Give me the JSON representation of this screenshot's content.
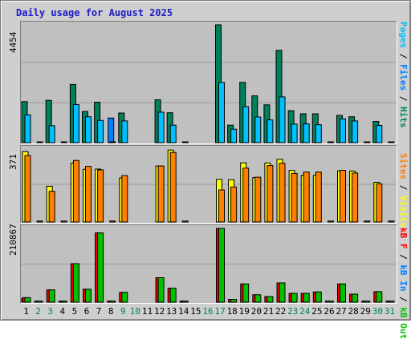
{
  "title": "Daily usage for August 2025",
  "colors": {
    "hits": "#00805c",
    "files": "#0080ff",
    "pages": "#00c0ff",
    "visits": "#ffff00",
    "sites": "#ff8000",
    "kb_f": "#ff0000",
    "kb_in": "#0080ff",
    "kb_out": "#00c000",
    "weekend_day": "#00805c",
    "weekday_day": "#000000"
  },
  "legend_top": [
    {
      "text": "Pages",
      "color": "#00c0ff"
    },
    {
      "text": " / ",
      "color": "#000000"
    },
    {
      "text": "Files",
      "color": "#0080ff"
    },
    {
      "text": " / ",
      "color": "#000000"
    },
    {
      "text": "Hits",
      "color": "#00805c"
    }
  ],
  "legend_mid": [
    {
      "text": "Sites",
      "color": "#ff8000"
    },
    {
      "text": " / ",
      "color": "#000000"
    },
    {
      "text": "Visits",
      "color": "#ffff00"
    }
  ],
  "legend_bot": [
    {
      "text": "kB F",
      "color": "#ff0000"
    },
    {
      "text": " / ",
      "color": "#000000"
    },
    {
      "text": "kB In",
      "color": "#0080ff"
    },
    {
      "text": " / ",
      "color": "#000000"
    },
    {
      "text": "kB Out",
      "color": "#00c000"
    }
  ],
  "chart_data": [
    {
      "type": "bar",
      "name": "hits-files-pages",
      "max_label": "4454",
      "ylim": [
        0,
        4454
      ],
      "categories": [
        "1",
        "2",
        "3",
        "4",
        "5",
        "6",
        "7",
        "8",
        "9",
        "10",
        "11",
        "12",
        "13",
        "14",
        "15",
        "16",
        "17",
        "18",
        "19",
        "20",
        "21",
        "22",
        "23",
        "24",
        "25",
        "26",
        "27",
        "28",
        "29",
        "30",
        "31"
      ],
      "series": [
        {
          "name": "Hits",
          "values": [
            1550,
            0,
            1600,
            0,
            2200,
            1180,
            1530,
            0,
            1120,
            0,
            0,
            1620,
            1130,
            0,
            0,
            0,
            4454,
            660,
            2280,
            1770,
            1430,
            3490,
            1210,
            1090,
            1090,
            0,
            1030,
            980,
            0,
            800,
            0
          ]
        },
        {
          "name": "Files",
          "values": [
            0,
            0,
            0,
            0,
            0,
            0,
            0,
            930,
            0,
            0,
            0,
            0,
            0,
            0,
            0,
            0,
            0,
            0,
            0,
            0,
            0,
            0,
            0,
            0,
            0,
            0,
            0,
            0,
            0,
            0,
            0
          ]
        },
        {
          "name": "Pages",
          "values": [
            1050,
            30,
            640,
            30,
            1440,
            980,
            840,
            30,
            820,
            0,
            0,
            1150,
            660,
            30,
            0,
            0,
            2280,
            510,
            1360,
            970,
            860,
            1730,
            700,
            710,
            680,
            30,
            900,
            820,
            30,
            650,
            30
          ]
        }
      ]
    },
    {
      "type": "bar",
      "name": "visits-sites",
      "max_label": "371",
      "ylim": [
        0,
        371
      ],
      "categories": [
        "1",
        "2",
        "3",
        "4",
        "5",
        "6",
        "7",
        "8",
        "9",
        "10",
        "11",
        "12",
        "13",
        "14",
        "15",
        "16",
        "17",
        "18",
        "19",
        "20",
        "21",
        "22",
        "23",
        "24",
        "25",
        "26",
        "27",
        "28",
        "29",
        "30",
        "31"
      ],
      "series": [
        {
          "name": "Visits",
          "values": [
            358,
            0,
            182,
            0,
            299,
            268,
            269,
            0,
            224,
            0,
            0,
            285,
            366,
            0,
            0,
            0,
            217,
            215,
            301,
            226,
            300,
            319,
            262,
            237,
            237,
            0,
            260,
            259,
            0,
            202,
            0
          ]
        },
        {
          "name": "Sites",
          "values": [
            338,
            5,
            156,
            5,
            313,
            283,
            265,
            5,
            236,
            0,
            0,
            285,
            354,
            5,
            0,
            0,
            163,
            178,
            274,
            228,
            287,
            299,
            247,
            254,
            254,
            5,
            263,
            249,
            5,
            194,
            5
          ]
        }
      ]
    },
    {
      "type": "bar",
      "name": "kbytes",
      "max_label": "210867",
      "ylim": [
        0,
        210867
      ],
      "categories": [
        "1",
        "2",
        "3",
        "4",
        "5",
        "6",
        "7",
        "8",
        "9",
        "10",
        "11",
        "12",
        "13",
        "14",
        "15",
        "16",
        "17",
        "18",
        "19",
        "20",
        "21",
        "22",
        "23",
        "24",
        "25",
        "26",
        "27",
        "28",
        "29",
        "30",
        "31"
      ],
      "series": [
        {
          "name": "kB F",
          "values": [
            10000,
            0,
            0,
            0,
            0,
            0,
            0,
            0,
            0,
            0,
            0,
            0,
            0,
            0,
            0,
            0,
            0,
            0,
            0,
            0,
            0,
            0,
            0,
            0,
            0,
            0,
            0,
            0,
            0,
            0,
            0
          ]
        },
        {
          "name": "kB Out",
          "values": [
            12800,
            3000,
            35000,
            3000,
            110000,
            37000,
            198000,
            3000,
            28000,
            0,
            0,
            70000,
            40000,
            3000,
            0,
            0,
            210867,
            8000,
            52000,
            21000,
            16000,
            55000,
            25000,
            25000,
            29000,
            3000,
            52000,
            23000,
            3000,
            30000,
            3000
          ]
        }
      ]
    }
  ],
  "days": [
    {
      "label": "1",
      "weekend": false
    },
    {
      "label": "2",
      "weekend": true
    },
    {
      "label": "3",
      "weekend": true
    },
    {
      "label": "4",
      "weekend": false
    },
    {
      "label": "5",
      "weekend": false
    },
    {
      "label": "6",
      "weekend": false
    },
    {
      "label": "7",
      "weekend": false
    },
    {
      "label": "8",
      "weekend": false
    },
    {
      "label": "9",
      "weekend": true
    },
    {
      "label": "10",
      "weekend": true
    },
    {
      "label": "11",
      "weekend": false
    },
    {
      "label": "12",
      "weekend": false
    },
    {
      "label": "13",
      "weekend": false
    },
    {
      "label": "14",
      "weekend": false
    },
    {
      "label": "15",
      "weekend": false
    },
    {
      "label": "16",
      "weekend": true
    },
    {
      "label": "17",
      "weekend": true
    },
    {
      "label": "18",
      "weekend": false
    },
    {
      "label": "19",
      "weekend": false
    },
    {
      "label": "20",
      "weekend": false
    },
    {
      "label": "21",
      "weekend": false
    },
    {
      "label": "22",
      "weekend": false
    },
    {
      "label": "23",
      "weekend": true
    },
    {
      "label": "24",
      "weekend": true
    },
    {
      "label": "25",
      "weekend": false
    },
    {
      "label": "26",
      "weekend": false
    },
    {
      "label": "27",
      "weekend": false
    },
    {
      "label": "28",
      "weekend": false
    },
    {
      "label": "29",
      "weekend": false
    },
    {
      "label": "30",
      "weekend": true
    },
    {
      "label": "31",
      "weekend": true
    }
  ]
}
